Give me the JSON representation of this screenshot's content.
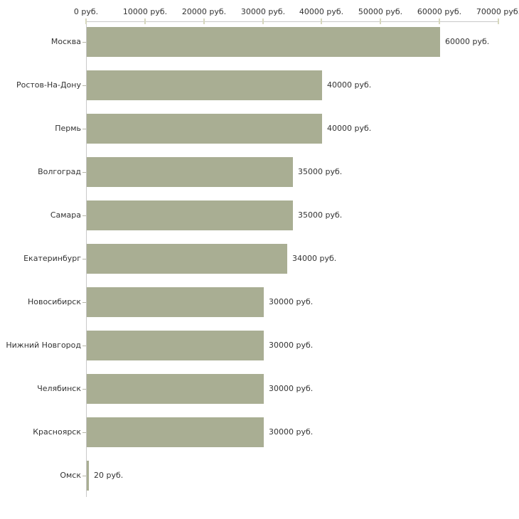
{
  "chart_data": {
    "type": "bar",
    "orientation": "horizontal",
    "title": "",
    "xlabel": "",
    "ylabel": "",
    "categories": [
      "Москва",
      "Ростов-На-Дону",
      "Пермь",
      "Волгоград",
      "Самара",
      "Екатеринбург",
      "Новосибирск",
      "Нижний Новгород",
      "Челябинск",
      "Красноярск",
      "Омск"
    ],
    "values": [
      60000,
      40000,
      40000,
      35000,
      35000,
      34000,
      30000,
      30000,
      30000,
      30000,
      20
    ],
    "value_labels": [
      "60000 руб.",
      "40000 руб.",
      "40000 руб.",
      "35000 руб.",
      "35000 руб.",
      "34000 руб.",
      "30000 руб.",
      "30000 руб.",
      "30000 руб.",
      "30000 руб.",
      "20 руб."
    ],
    "xlim": [
      0,
      70000
    ],
    "x_ticks": [
      0,
      10000,
      20000,
      30000,
      40000,
      50000,
      60000,
      70000
    ],
    "x_tick_labels": [
      "0 руб.",
      "10000 руб.",
      "20000 руб.",
      "30000 руб.",
      "40000 руб.",
      "50000 руб.",
      "60000 руб.",
      "70000 руб."
    ],
    "axis_position": "top",
    "grid": false,
    "legend": false,
    "colors": {
      "bar": "#a9ae93",
      "axis_line": "#c9c9c9",
      "x_tick": "#d6d7bd",
      "y_tick": "#b6b6a8",
      "text": "#333333",
      "background": "#ffffff"
    }
  }
}
